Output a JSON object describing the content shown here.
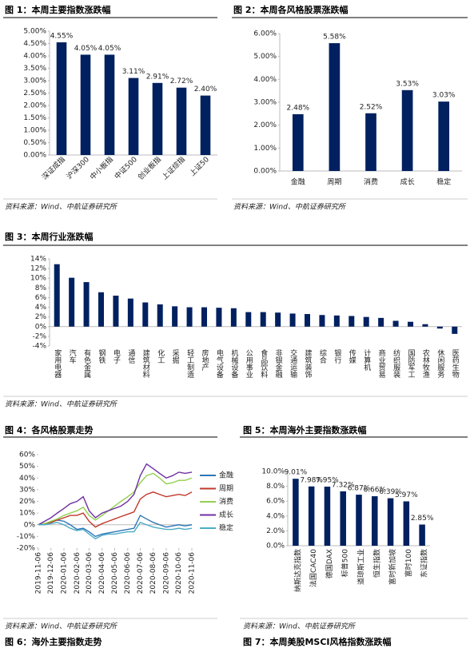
{
  "chart_data": [
    {
      "type": "bar",
      "title": "图 1：本周主要指数涨跌幅",
      "color": "#002060",
      "categories": [
        "深证成指",
        "沪深300",
        "中小板指",
        "中证500",
        "创业板指",
        "上证综指",
        "上证50"
      ],
      "values": [
        4.55,
        4.05,
        4.05,
        3.11,
        2.91,
        2.72,
        2.4
      ],
      "value_labels": [
        "4.55%",
        "4.05%",
        "4.05%",
        "3.11%",
        "2.91%",
        "2.72%",
        "2.40%"
      ],
      "ylim": [
        0,
        5
      ],
      "yticks": [
        {
          "value": 0,
          "label": "0.00%"
        },
        {
          "value": 0.5,
          "label": "0.50%"
        },
        {
          "value": 1,
          "label": "1.00%"
        },
        {
          "value": 1.5,
          "label": "1.50%"
        },
        {
          "value": 2,
          "label": "2.00%"
        },
        {
          "value": 2.5,
          "label": "2.50%"
        },
        {
          "value": 3,
          "label": "3.00%"
        },
        {
          "value": 3.5,
          "label": "3.50%"
        },
        {
          "value": 4,
          "label": "4.00%"
        },
        {
          "value": 4.5,
          "label": "4.50%"
        },
        {
          "value": 5,
          "label": "5.00%"
        }
      ]
    },
    {
      "type": "bar",
      "title": "图 2：本周各风格股票涨跌幅",
      "color": "#002060",
      "categories": [
        "金融",
        "周期",
        "消费",
        "成长",
        "稳定"
      ],
      "values": [
        2.48,
        5.58,
        2.52,
        3.53,
        3.03
      ],
      "value_labels": [
        "2.48%",
        "5.58%",
        "2.52%",
        "3.53%",
        "3.03%"
      ],
      "ylim": [
        0,
        6
      ],
      "yticks": [
        {
          "value": 0,
          "label": "0.00%"
        },
        {
          "value": 1,
          "label": "1.00%"
        },
        {
          "value": 2,
          "label": "2.00%"
        },
        {
          "value": 3,
          "label": "3.00%"
        },
        {
          "value": 4,
          "label": "4.00%"
        },
        {
          "value": 5,
          "label": "5.00%"
        },
        {
          "value": 6,
          "label": "6.00%"
        }
      ]
    },
    {
      "type": "bar",
      "title": "图 3：本周行业涨跌幅",
      "color": "#002060",
      "categories": [
        "家用电器",
        "汽车",
        "有色金属",
        "钢铁",
        "电子",
        "通信",
        "建筑材料",
        "化工",
        "采掘",
        "轻工制造",
        "房地产",
        "电气设备",
        "机械设备",
        "公用事业",
        "食品饮料",
        "非银金融",
        "交通运输",
        "建筑装饰",
        "综合",
        "银行",
        "传媒",
        "计算机",
        "商业贸易",
        "纺织服装",
        "国防军工",
        "农林牧渔",
        "休闲服务",
        "医药生物"
      ],
      "values": [
        12.9,
        10.1,
        9.2,
        7.1,
        6.4,
        5.8,
        5.0,
        4.6,
        4.2,
        4.0,
        4.0,
        3.9,
        3.8,
        3.0,
        3.0,
        2.9,
        2.7,
        2.6,
        2.4,
        2.3,
        2.2,
        2.0,
        1.8,
        1.2,
        1.0,
        0.5,
        -0.4,
        -1.5
      ],
      "ylim": [
        -4,
        14
      ],
      "yticks": [
        {
          "value": -4,
          "label": "-4%"
        },
        {
          "value": -2,
          "label": "-2%"
        },
        {
          "value": 0,
          "label": "0%"
        },
        {
          "value": 2,
          "label": "2%"
        },
        {
          "value": 4,
          "label": "4%"
        },
        {
          "value": 6,
          "label": "6%"
        },
        {
          "value": 8,
          "label": "8%"
        },
        {
          "value": 10,
          "label": "10%"
        },
        {
          "value": 12,
          "label": "12%"
        },
        {
          "value": 14,
          "label": "14%"
        }
      ]
    },
    {
      "type": "line",
      "title": "图 4：各风格股票走势",
      "x": [
        "2019-11-06",
        "2019-11-21",
        "2019-12-06",
        "2019-12-21",
        "2020-01-06",
        "2020-01-21",
        "2020-02-06",
        "2020-02-21",
        "2020-03-06",
        "2020-03-21",
        "2020-04-06",
        "2020-04-21",
        "2020-05-06",
        "2020-05-21",
        "2020-06-06",
        "2020-06-21",
        "2020-07-06",
        "2020-07-21",
        "2020-08-06",
        "2020-08-21",
        "2020-09-06",
        "2020-09-21",
        "2020-10-06",
        "2020-10-21",
        "2020-11-06"
      ],
      "series": [
        {
          "name": "金融",
          "color": "#2e75b6",
          "values": [
            0,
            1,
            2,
            4,
            3,
            0,
            -4,
            -3,
            -6,
            -10,
            -8,
            -7,
            -6,
            -5,
            -4,
            -3,
            8,
            5,
            2,
            0,
            -2,
            -1,
            0,
            -1,
            0
          ]
        },
        {
          "name": "周期",
          "color": "#c0392b",
          "values": [
            0,
            1,
            2,
            4,
            6,
            8,
            8,
            10,
            3,
            -2,
            1,
            3,
            5,
            7,
            9,
            11,
            22,
            26,
            28,
            26,
            24,
            25,
            26,
            25,
            28
          ]
        },
        {
          "name": "消费",
          "color": "#92d050",
          "values": [
            0,
            1,
            3,
            5,
            8,
            10,
            12,
            15,
            8,
            4,
            8,
            12,
            16,
            20,
            24,
            28,
            36,
            42,
            44,
            40,
            35,
            36,
            38,
            38,
            40
          ]
        },
        {
          "name": "成长",
          "color": "#7030a0",
          "values": [
            0,
            3,
            6,
            10,
            14,
            18,
            20,
            24,
            12,
            6,
            10,
            12,
            14,
            16,
            20,
            26,
            42,
            52,
            48,
            44,
            40,
            42,
            45,
            44,
            45
          ]
        },
        {
          "name": "稳定",
          "color": "#4bacc6",
          "values": [
            0,
            0,
            1,
            2,
            0,
            -3,
            -5,
            -4,
            -8,
            -12,
            -9,
            -8,
            -8,
            -7,
            -6,
            -6,
            2,
            0,
            -2,
            -3,
            -4,
            -4,
            -3,
            -4,
            -3
          ]
        }
      ],
      "xlim": [
        "2019-11-06",
        "2020-11-06"
      ],
      "xticks": [
        "2019-11-06",
        "2019-12-06",
        "2020-01-06",
        "2020-02-06",
        "2020-03-06",
        "2020-04-06",
        "2020-05-06",
        "2020-06-06",
        "2020-07-06",
        "2020-08-06",
        "2020-09-06",
        "2020-10-06",
        "2020-11-06"
      ],
      "ylim": [
        -20,
        60
      ],
      "yticks": [
        {
          "value": -20,
          "label": "-20%"
        },
        {
          "value": -10,
          "label": "-10%"
        },
        {
          "value": 0,
          "label": "0%"
        },
        {
          "value": 10,
          "label": "10%"
        },
        {
          "value": 20,
          "label": "20%"
        },
        {
          "value": 30,
          "label": "30%"
        },
        {
          "value": 40,
          "label": "40%"
        },
        {
          "value": 50,
          "label": "50%"
        },
        {
          "value": 60,
          "label": "60%"
        }
      ],
      "legend": "right"
    },
    {
      "type": "bar",
      "title": "图 5：本周海外主要指数涨跌幅",
      "color": "#002060",
      "categories": [
        "纳斯达克指数",
        "法国CAC40",
        "德国DAX",
        "标普500",
        "道琼斯工业",
        "恒生指数",
        "富时新加坡",
        "富时100",
        "东证指数"
      ],
      "values": [
        9.01,
        7.98,
        7.95,
        7.32,
        6.87,
        6.66,
        6.39,
        5.97,
        2.85
      ],
      "value_labels": [
        "9.01%",
        "7.98%",
        "7.95%",
        "7.32%",
        "6.87%",
        "6.66%",
        "6.39%",
        "5.97%",
        "2.85%"
      ],
      "ylim": [
        0,
        10
      ],
      "yticks": [
        {
          "value": 0,
          "label": "0.0%"
        },
        {
          "value": 2,
          "label": "2.0%"
        },
        {
          "value": 4,
          "label": "4.0%"
        },
        {
          "value": 6,
          "label": "6.0%"
        },
        {
          "value": 8,
          "label": "8.0%"
        },
        {
          "value": 10,
          "label": "10.0%"
        }
      ]
    }
  ],
  "sources": [
    "资料来源：Wind、中航证券研究所",
    "资料来源：Wind、中航证券研究所",
    "资料来源：Wind、中航证券研究所",
    "资料来源：Wind、中航证券研究所",
    "资料来源：Wind、中航证券研究所",
    "资料来源：Wind、中航证券研究所"
  ],
  "captions": [
    "图 6：海外主要指数走势",
    "图 7：本周美股MSCI风格指数涨跌幅"
  ]
}
